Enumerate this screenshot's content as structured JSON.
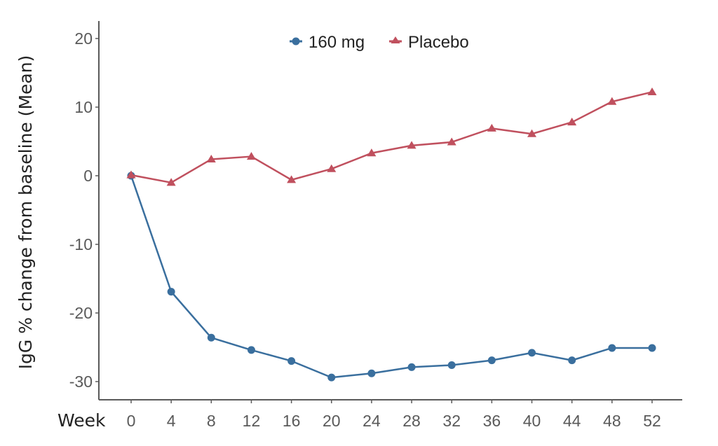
{
  "chart_data": {
    "type": "line",
    "title": "",
    "xlabel": "Week",
    "ylabel": "IgG % change from baseline (Mean)",
    "x": [
      0,
      4,
      8,
      12,
      16,
      20,
      24,
      28,
      32,
      36,
      40,
      44,
      48,
      52
    ],
    "x_tick_labels": [
      "0",
      "4",
      "8",
      "12",
      "16",
      "20",
      "24",
      "28",
      "32",
      "36",
      "40",
      "44",
      "48",
      "52"
    ],
    "y_ticks": [
      20,
      10,
      0,
      -10,
      -20,
      -30
    ],
    "y_tick_labels": [
      "20",
      "10",
      "0",
      "-10",
      "-20",
      "-30"
    ],
    "xlim": [
      -2.5,
      55
    ],
    "ylim": [
      -32.5,
      22.5
    ],
    "grid": false,
    "legend_position": "top-center",
    "series": [
      {
        "name": "160 mg",
        "color": "#3a6f9e",
        "marker": "circle",
        "values": [
          0,
          -16.9,
          -23.6,
          -25.4,
          -27.0,
          -29.4,
          -28.8,
          -27.9,
          -27.6,
          -26.9,
          -25.8,
          -26.9,
          -25.1,
          -25.1
        ]
      },
      {
        "name": "Placebo",
        "color": "#c0505e",
        "marker": "triangle",
        "values": [
          0.1,
          -1.0,
          2.4,
          2.8,
          -0.6,
          1.0,
          3.3,
          4.4,
          4.9,
          6.9,
          6.1,
          7.8,
          10.8,
          12.2
        ]
      }
    ]
  },
  "colors": {
    "axis": "#5a5a5a",
    "text": "#222222"
  }
}
